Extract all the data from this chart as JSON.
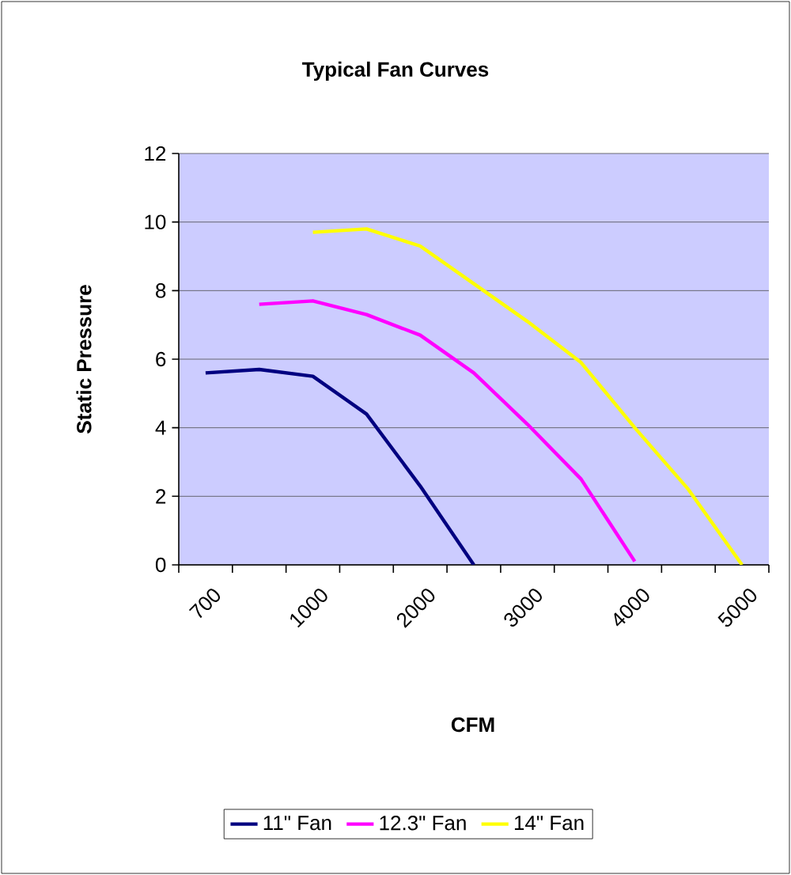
{
  "chart_data": {
    "type": "line",
    "title": "Typical Fan Curves",
    "xlabel": "CFM",
    "ylabel": "Static Pressure",
    "categories": [
      "700",
      null,
      "1000",
      null,
      "2000",
      null,
      "3000",
      null,
      "4000",
      null,
      "5000"
    ],
    "series": [
      {
        "name": "11\" Fan",
        "color": "#000080",
        "values": [
          5.6,
          5.7,
          5.5,
          4.4,
          2.3,
          0,
          null,
          null,
          null,
          null,
          null
        ]
      },
      {
        "name": "12.3\" Fan",
        "color": "#ff00ff",
        "values": [
          null,
          7.6,
          7.7,
          7.3,
          6.7,
          5.6,
          4.1,
          2.5,
          0.1,
          null,
          null
        ]
      },
      {
        "name": "14\" Fan",
        "color": "#ffff00",
        "values": [
          null,
          null,
          9.7,
          9.8,
          9.3,
          8.2,
          7.1,
          5.9,
          4.0,
          2.2,
          0
        ]
      }
    ],
    "ylim": [
      0,
      12
    ],
    "yticks": [
      0,
      2,
      4,
      6,
      8,
      10,
      12
    ],
    "grid": "y",
    "legend": "bottom",
    "marker": "none",
    "line_style": "solid"
  }
}
